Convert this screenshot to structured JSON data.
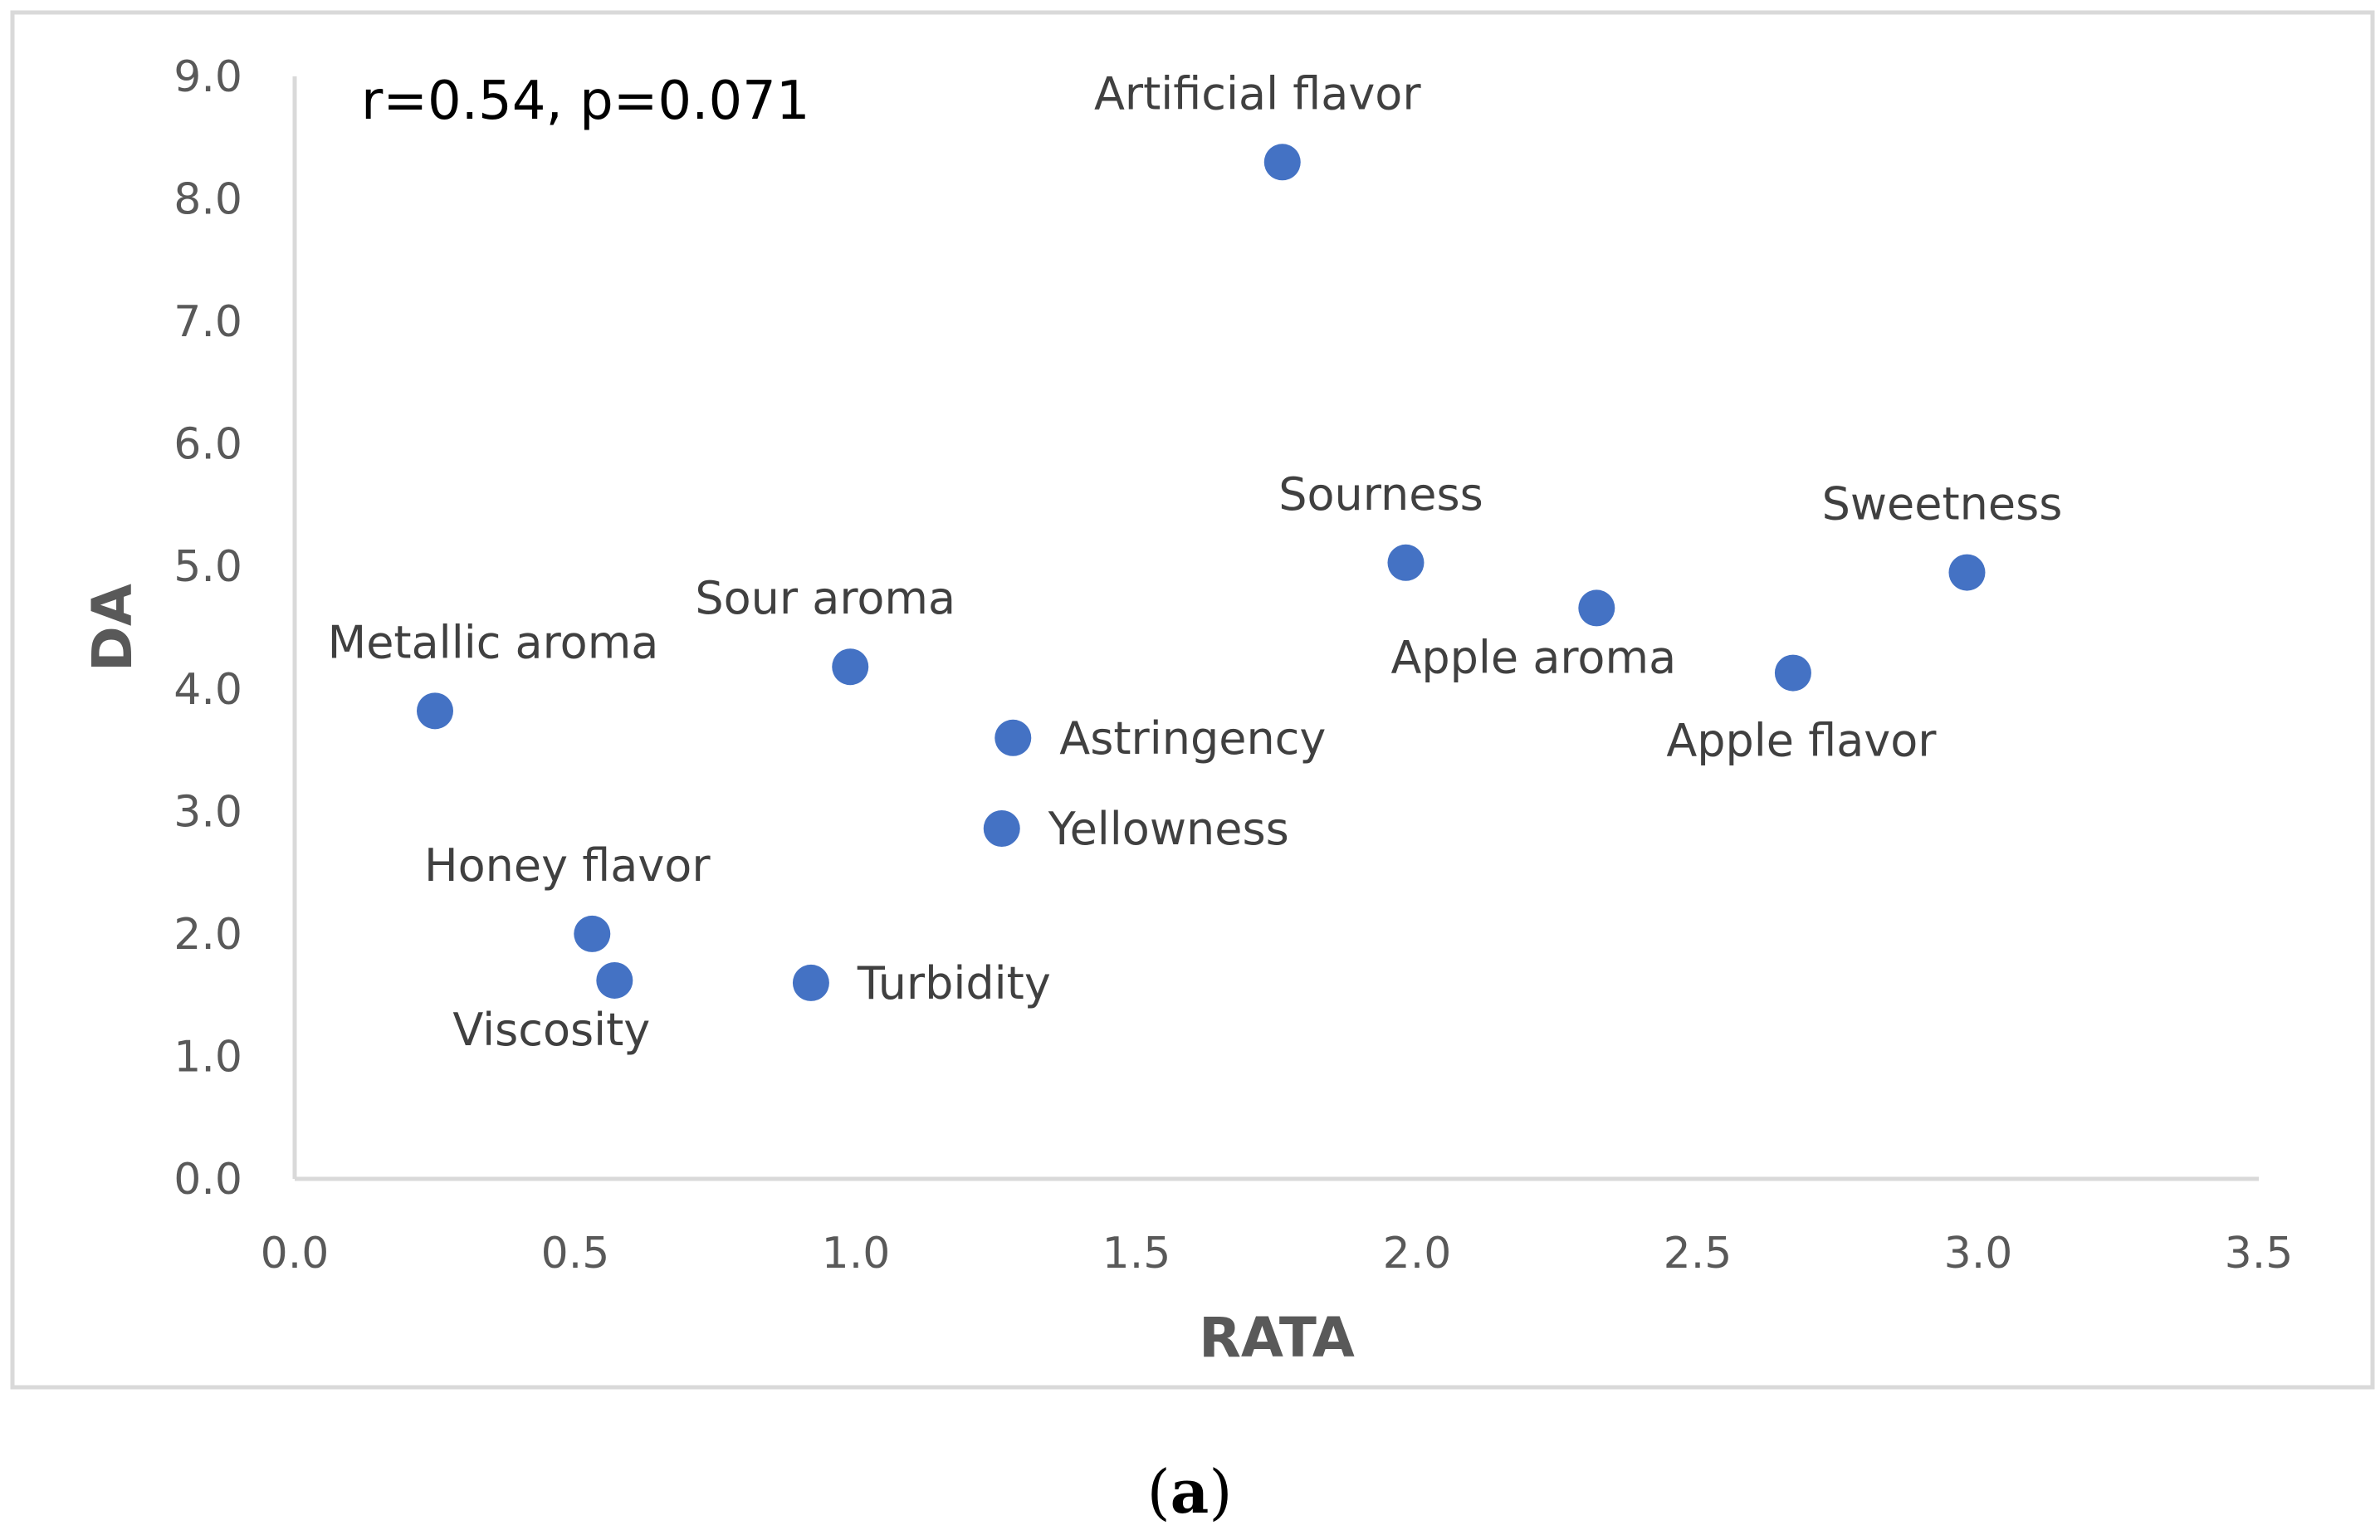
{
  "chart_data": {
    "type": "scatter",
    "title": "",
    "xlabel": "RATA",
    "ylabel": "DA",
    "xlim": [
      0.0,
      3.5
    ],
    "ylim": [
      0.0,
      9.0
    ],
    "x_ticks": [
      "0.0",
      "0.5",
      "1.0",
      "1.5",
      "2.0",
      "2.5",
      "3.0",
      "3.5"
    ],
    "y_ticks": [
      "0.0",
      "1.0",
      "2.0",
      "3.0",
      "4.0",
      "5.0",
      "6.0",
      "7.0",
      "8.0",
      "9.0"
    ],
    "grid": false,
    "annotation": "r=0.54, p=0.071",
    "marker_color": "#4472C4",
    "points": [
      {
        "label": "Artificial flavor",
        "x": 1.76,
        "y": 8.3,
        "label_pos": "above"
      },
      {
        "label": "Sourness",
        "x": 1.98,
        "y": 5.03,
        "label_pos": "above"
      },
      {
        "label": "Sweetness",
        "x": 2.98,
        "y": 4.95,
        "label_pos": "above"
      },
      {
        "label": "Apple aroma",
        "x": 2.32,
        "y": 4.66,
        "label_pos": "below-left"
      },
      {
        "label": "Apple flavor",
        "x": 2.67,
        "y": 4.13,
        "label_pos": "below"
      },
      {
        "label": "Sour aroma",
        "x": 0.99,
        "y": 4.18,
        "label_pos": "above"
      },
      {
        "label": "Metallic aroma",
        "x": 0.25,
        "y": 3.82,
        "label_pos": "above-right"
      },
      {
        "label": "Astringency",
        "x": 1.28,
        "y": 3.6,
        "label_pos": "right"
      },
      {
        "label": "Yellowness",
        "x": 1.26,
        "y": 2.86,
        "label_pos": "right"
      },
      {
        "label": "Honey flavor",
        "x": 0.53,
        "y": 2.0,
        "label_pos": "above"
      },
      {
        "label": "Viscosity",
        "x": 0.57,
        "y": 1.62,
        "label_pos": "below-left"
      },
      {
        "label": "Turbidity",
        "x": 0.92,
        "y": 1.6,
        "label_pos": "right"
      }
    ]
  },
  "caption": {
    "open": "(",
    "letter": "a",
    "close": ")"
  },
  "colors": {
    "frame": "#d9d9d9",
    "axis": "#d9d9d9",
    "marker": "#4472C4"
  }
}
